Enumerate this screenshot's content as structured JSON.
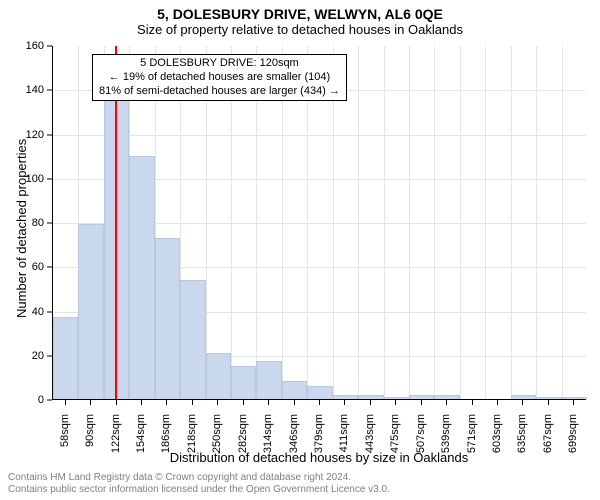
{
  "title_line1": "5, DOLESBURY DRIVE, WELWYN, AL6 0QE",
  "title_line2": "Size of property relative to detached houses in Oaklands",
  "xlabel": "Distribution of detached houses by size in Oaklands",
  "ylabel": "Number of detached properties",
  "infobox": {
    "line1": "5 DOLESBURY DRIVE: 120sqm",
    "line2": "← 19% of detached houses are smaller (104)",
    "line3": "81% of semi-detached houses are larger (434) →"
  },
  "chart": {
    "type": "bar",
    "categories": [
      "58sqm",
      "90sqm",
      "122sqm",
      "154sqm",
      "186sqm",
      "218sqm",
      "250sqm",
      "282sqm",
      "314sqm",
      "346sqm",
      "379sqm",
      "411sqm",
      "443sqm",
      "475sqm",
      "507sqm",
      "539sqm",
      "571sqm",
      "603sqm",
      "635sqm",
      "667sqm",
      "699sqm"
    ],
    "values": [
      37,
      79,
      141,
      110,
      73,
      54,
      21,
      15,
      17,
      8,
      6,
      2,
      2,
      1,
      2,
      2,
      0,
      0,
      2,
      1,
      1
    ],
    "ylim": [
      0,
      160
    ],
    "ytick_step": 20,
    "bar_fill": "#cad8ee",
    "bar_border": "#bac7de",
    "grid_color": "#e4e4e4",
    "background_color": "#ffffff",
    "refline_value": 120,
    "refline_color": "#ff0000",
    "bar_width_ratio": 1.0,
    "tick_fontsize": 11,
    "label_fontsize": 13,
    "title_fontsize": 14
  },
  "footer_line1": "Contains HM Land Registry data © Crown copyright and database right 2024.",
  "footer_line2": "Contains public sector information licensed under the Open Government Licence v3.0.",
  "footer_color": "#808080",
  "footer_fontsize": 10
}
